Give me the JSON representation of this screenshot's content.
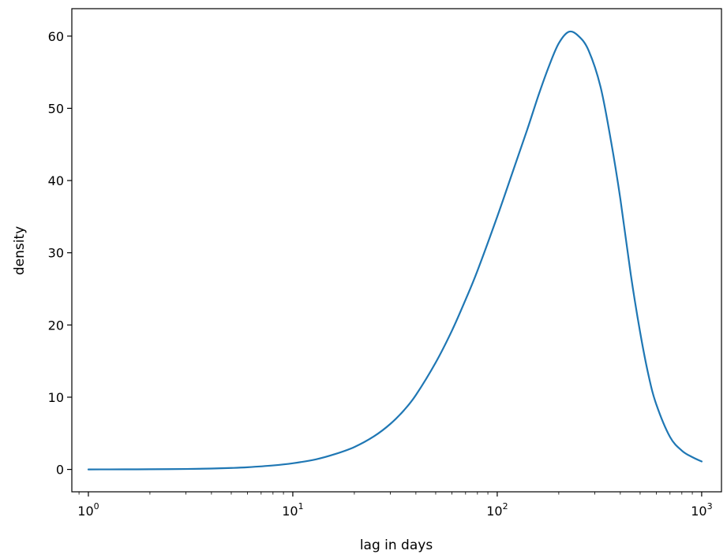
{
  "chart_data": {
    "type": "line",
    "title": "",
    "xlabel": "lag in days",
    "ylabel": "density",
    "xscale": "log",
    "xlim": [
      0.83,
      1250
    ],
    "ylim": [
      -3.1,
      63.8
    ],
    "grid": false,
    "legend": "none",
    "x_ticks": [
      {
        "base": "10",
        "exp": "0",
        "value": 1
      },
      {
        "base": "10",
        "exp": "1",
        "value": 10
      },
      {
        "base": "10",
        "exp": "2",
        "value": 100
      },
      {
        "base": "10",
        "exp": "3",
        "value": 1000
      }
    ],
    "y_ticks": [
      {
        "label": "0",
        "value": 0
      },
      {
        "label": "10",
        "value": 10
      },
      {
        "label": "20",
        "value": 20
      },
      {
        "label": "30",
        "value": 30
      },
      {
        "label": "40",
        "value": 40
      },
      {
        "label": "50",
        "value": 50
      },
      {
        "label": "60",
        "value": 60
      }
    ],
    "series": [
      {
        "color": "#1f77b4",
        "points": [
          [
            1,
            0.0
          ],
          [
            1.5,
            0.01
          ],
          [
            2,
            0.02
          ],
          [
            3,
            0.06
          ],
          [
            4,
            0.12
          ],
          [
            5,
            0.2
          ],
          [
            6,
            0.3
          ],
          [
            8,
            0.55
          ],
          [
            10,
            0.85
          ],
          [
            13,
            1.4
          ],
          [
            16,
            2.1
          ],
          [
            20,
            3.1
          ],
          [
            25,
            4.6
          ],
          [
            30,
            6.3
          ],
          [
            35,
            8.2
          ],
          [
            40,
            10.3
          ],
          [
            50,
            14.8
          ],
          [
            60,
            19.2
          ],
          [
            70,
            23.5
          ],
          [
            80,
            27.5
          ],
          [
            100,
            35.0
          ],
          [
            120,
            41.5
          ],
          [
            140,
            47.0
          ],
          [
            160,
            52.0
          ],
          [
            180,
            56.0
          ],
          [
            200,
            59.0
          ],
          [
            224,
            60.6
          ],
          [
            250,
            60.0
          ],
          [
            280,
            58.0
          ],
          [
            320,
            53.0
          ],
          [
            360,
            45.5
          ],
          [
            400,
            37.5
          ],
          [
            450,
            27.0
          ],
          [
            500,
            19.0
          ],
          [
            550,
            13.0
          ],
          [
            600,
            9.0
          ],
          [
            700,
            4.5
          ],
          [
            800,
            2.6
          ],
          [
            900,
            1.7
          ],
          [
            1000,
            1.1
          ]
        ]
      }
    ]
  }
}
